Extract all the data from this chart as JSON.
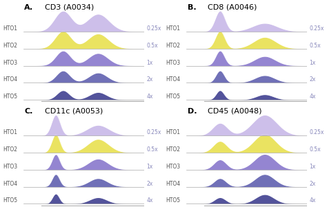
{
  "panels": [
    {
      "label": "A.",
      "title": "CD3 (A0034)",
      "type": "bimodal",
      "peak1": 0.35,
      "peak2": 0.65
    },
    {
      "label": "B.",
      "title": "CD8 (A0046)",
      "type": "sharp_bimodal",
      "peak1": 0.28,
      "peak2": 0.65
    },
    {
      "label": "C.",
      "title": "CD11c (A0053)",
      "type": "sharp_bimodal2",
      "peak1": 0.28,
      "peak2": 0.6
    },
    {
      "label": "D.",
      "title": "CD45 (A0048)",
      "type": "bimodal_wide",
      "peak1": 0.28,
      "peak2": 0.65
    }
  ],
  "hto_labels": [
    "HTO1",
    "HTO2",
    "HTO3",
    "HTO4",
    "HTO5"
  ],
  "dose_labels": [
    "0.25x",
    "0.5x",
    "1x",
    "2x",
    "4x"
  ],
  "colors": {
    "0.25x": "#c8b8e8",
    "0.5x": "#e8e050",
    "1x": "#8878cc",
    "2x": "#6060b0",
    "4x": "#404090"
  },
  "bg_color": "#ffffff",
  "dose_label_color": "#8888bb",
  "hto_label_color": "#555555",
  "spine_color": "#aaaaaa"
}
